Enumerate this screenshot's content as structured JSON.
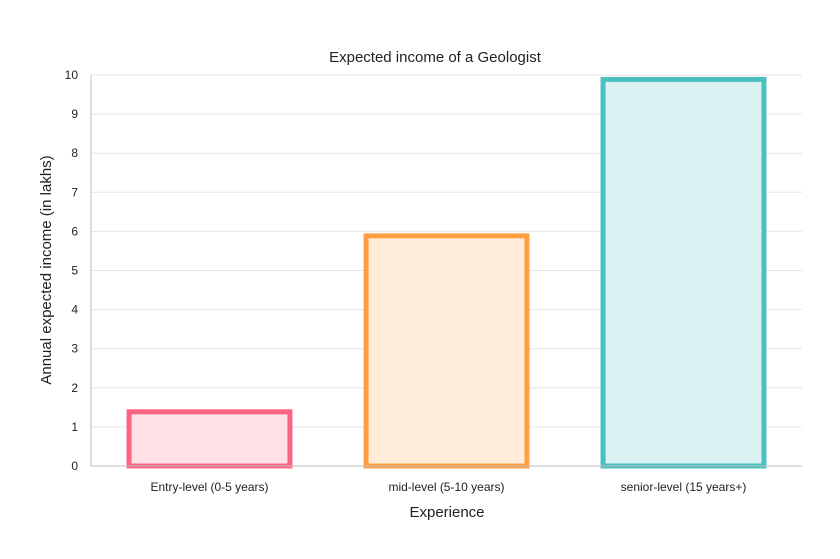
{
  "chart_data": {
    "type": "bar",
    "title": "Expected income of a Geologist",
    "xlabel": "Experience",
    "ylabel": "Annual expected income (in lakhs)",
    "categories": [
      "Entry-level (0-5 years)",
      "mid-level (5-10 years)",
      "senior-level (15 years+)"
    ],
    "values": [
      1.45,
      5.95,
      9.95
    ],
    "ylim": [
      0,
      10
    ],
    "yticks": [
      "0",
      "1",
      "2",
      "3",
      "4",
      "5",
      "6",
      "7",
      "8",
      "9",
      "10"
    ],
    "grid": true,
    "legend": "none",
    "colors": [
      {
        "border": "#ff6384",
        "fill": "#ffe0e6"
      },
      {
        "border": "#ff9f40",
        "fill": "#ffecd9"
      },
      {
        "border": "#4bc0c0",
        "fill": "#dbf2f2"
      }
    ]
  }
}
